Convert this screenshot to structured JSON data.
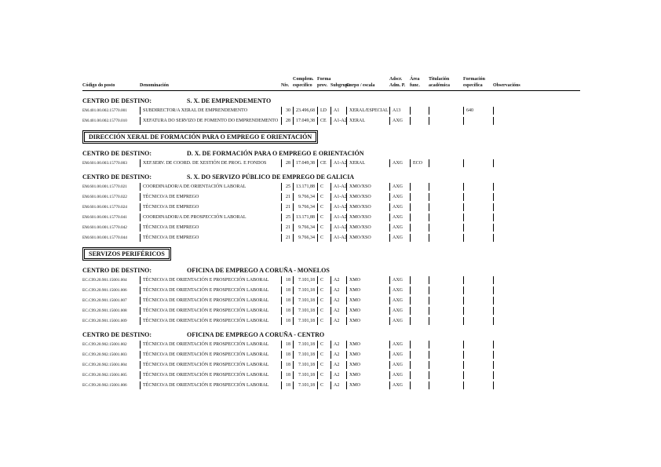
{
  "document": {
    "centro_label": "CENTRO DE DESTINO:",
    "columns": [
      {
        "line1": "",
        "line2": "Código do posto"
      },
      {
        "line1": "",
        "line2": "Denominación"
      },
      {
        "line1": "",
        "line2": "Niv."
      },
      {
        "line1": "Complem.",
        "line2": "específico"
      },
      {
        "line1": "Forma",
        "line2": "prov."
      },
      {
        "line1": "",
        "line2": "Subgrupo"
      },
      {
        "line1": "",
        "line2": "Corpo / escala"
      },
      {
        "line1": "Adscr.",
        "line2": "Adm. P."
      },
      {
        "line1": "Área",
        "line2": "func."
      },
      {
        "line1": "Titulación",
        "line2": "académica"
      },
      {
        "line1": "Formación",
        "line2": "específica"
      },
      {
        "line1": "",
        "line2": "Observacións"
      }
    ],
    "sections": [
      {
        "type": "centro",
        "title": "S. X. DE EMPRENDEMENTO",
        "rows": [
          {
            "codigo": "EM.401.00.002.15770.001",
            "denominacion": "SUBDIRECTOR/A XERAL DE EMPRENDEMENTO",
            "niv": "30",
            "complemento": "23.496,68",
            "forma": "LD",
            "subgrupo": "A1",
            "corpo": "XERAL/ESPECIAL",
            "adscr": "A13",
            "area": "",
            "titulacion": "",
            "formacion": "640",
            "observacions": ""
          },
          {
            "codigo": "EM.401.00.002.15770.010",
            "denominacion": "XEFATURA DO SERVIZO DE FOMENTO DO EMPRENDEMENTO",
            "niv": "28",
            "complemento": "17.049,38",
            "forma": "CE",
            "subgrupo": "A1-A2",
            "corpo": "XERAL",
            "adscr": "AXG",
            "area": "",
            "titulacion": "",
            "formacion": "",
            "observacions": ""
          }
        ]
      },
      {
        "type": "box",
        "title": "DIRECCIÓN XERAL DE FORMACIÓN PARA O EMPREGO E ORIENTACIÓN"
      },
      {
        "type": "centro",
        "title": "D. X. DE FORMACIÓN PARA O EMPREGO E ORIENTACIÓN",
        "rows": [
          {
            "codigo": "EM.601.00.003.15770.003",
            "denominacion": "XEF.SERV. DE COORD. DE XESTIÓN DE PROG. E FONDOS",
            "niv": "28",
            "complemento": "17.049,38",
            "forma": "CE",
            "subgrupo": "A1-A2",
            "corpo": "XERAL",
            "adscr": "AXG",
            "area": "ECO",
            "titulacion": "",
            "formacion": "",
            "observacions": ""
          }
        ]
      },
      {
        "type": "centro",
        "title": "S. X. DO SERVIZO PÚBLICO DE EMPREGO DE GALICIA",
        "rows": [
          {
            "codigo": "EM.601.00.001.15770.021",
            "denominacion": "COORDINADOR/A DE ORIENTACIÓN LABORAL",
            "niv": "25",
            "complemento": "13.171,88",
            "forma": "C",
            "subgrupo": "A1-A2",
            "corpo": "XMO/XSO",
            "adscr": "AXG",
            "area": "",
            "titulacion": "",
            "formacion": "",
            "observacions": ""
          },
          {
            "codigo": "EM.601.00.001.15770.022",
            "denominacion": "TÉCNICO/A DE EMPREGO",
            "niv": "21",
            "complemento": "9.766,34",
            "forma": "C",
            "subgrupo": "A1-A2",
            "corpo": "XMO/XSO",
            "adscr": "AXG",
            "area": "",
            "titulacion": "",
            "formacion": "",
            "observacions": ""
          },
          {
            "codigo": "EM.601.00.001.15770.024",
            "denominacion": "TÉCNICO/A DE EMPREGO",
            "niv": "21",
            "complemento": "9.766,34",
            "forma": "C",
            "subgrupo": "A1-A2",
            "corpo": "XMO/XSO",
            "adscr": "AXG",
            "area": "",
            "titulacion": "",
            "formacion": "",
            "observacions": ""
          },
          {
            "codigo": "EM.601.00.001.15770.041",
            "denominacion": "COORDINADOR/A DE PROSPECCIÓN LABORAL",
            "niv": "25",
            "complemento": "13.171,88",
            "forma": "C",
            "subgrupo": "A1-A2",
            "corpo": "XMO/XSO",
            "adscr": "AXG",
            "area": "",
            "titulacion": "",
            "formacion": "",
            "observacions": ""
          },
          {
            "codigo": "EM.601.00.001.15770.042",
            "denominacion": "TÉCNICO/A DE EMPREGO",
            "niv": "21",
            "complemento": "9.766,34",
            "forma": "C",
            "subgrupo": "A1-A2",
            "corpo": "XMO/XSO",
            "adscr": "AXG",
            "area": "",
            "titulacion": "",
            "formacion": "",
            "observacions": ""
          },
          {
            "codigo": "EM.601.00.001.15770.044",
            "denominacion": "TÉCNICO/A DE EMPREGO",
            "niv": "21",
            "complemento": "9.766,34",
            "forma": "C",
            "subgrupo": "A1-A2",
            "corpo": "XMO/XSO",
            "adscr": "AXG",
            "area": "",
            "titulacion": "",
            "formacion": "",
            "observacions": ""
          }
        ]
      },
      {
        "type": "box",
        "title": "SERVIZOS PERIFÉRICOS"
      },
      {
        "type": "centro",
        "title": "OFICINA DE EMPREGO A CORUÑA - MONELOS",
        "rows": [
          {
            "codigo": "EC.C99.20.901.15001.004",
            "denominacion": "TÉCNICO/A DE ORIENTACIÓN E PROSPECCIÓN LABORAL",
            "niv": "18",
            "complemento": "7.101,18",
            "forma": "C",
            "subgrupo": "A2",
            "corpo": "XMO",
            "adscr": "AXG",
            "area": "",
            "titulacion": "",
            "formacion": "",
            "observacions": ""
          },
          {
            "codigo": "EC.C99.20.901.15001.006",
            "denominacion": "TÉCNICO/A DE ORIENTACIÓN E PROSPECCIÓN LABORAL",
            "niv": "18",
            "complemento": "7.101,18",
            "forma": "C",
            "subgrupo": "A2",
            "corpo": "XMO",
            "adscr": "AXG",
            "area": "",
            "titulacion": "",
            "formacion": "",
            "observacions": ""
          },
          {
            "codigo": "EC.C99.20.901.15001.007",
            "denominacion": "TÉCNICO/A DE ORIENTACIÓN E PROSPECCIÓN LABORAL",
            "niv": "18",
            "complemento": "7.101,18",
            "forma": "C",
            "subgrupo": "A2",
            "corpo": "XMO",
            "adscr": "AXG",
            "area": "",
            "titulacion": "",
            "formacion": "",
            "observacions": ""
          },
          {
            "codigo": "EC.C99.20.901.15001.008",
            "denominacion": "TÉCNICO/A DE ORIENTACIÓN E PROSPECCIÓN LABORAL",
            "niv": "18",
            "complemento": "7.101,18",
            "forma": "C",
            "subgrupo": "A2",
            "corpo": "XMO",
            "adscr": "AXG",
            "area": "",
            "titulacion": "",
            "formacion": "",
            "observacions": ""
          },
          {
            "codigo": "EC.C99.20.901.15001.009",
            "denominacion": "TÉCNICO/A DE ORIENTACIÓN E PROSPECCIÓN LABORAL",
            "niv": "18",
            "complemento": "7.101,18",
            "forma": "C",
            "subgrupo": "A2",
            "corpo": "XMO",
            "adscr": "AXG",
            "area": "",
            "titulacion": "",
            "formacion": "",
            "observacions": ""
          }
        ]
      },
      {
        "type": "centro",
        "title": "OFICINA DE EMPREGO A CORUÑA - CENTRO",
        "rows": [
          {
            "codigo": "EC.C99.20.902.15001.002",
            "denominacion": "TÉCNICO/A DE ORIENTACIÓN E PROSPECCIÓN LABORAL",
            "niv": "18",
            "complemento": "7.101,18",
            "forma": "C",
            "subgrupo": "A2",
            "corpo": "XMO",
            "adscr": "AXG",
            "area": "",
            "titulacion": "",
            "formacion": "",
            "observacions": ""
          },
          {
            "codigo": "EC.C99.20.902.15001.003",
            "denominacion": "TÉCNICO/A DE ORIENTACIÓN E PROSPECCIÓN LABORAL",
            "niv": "18",
            "complemento": "7.101,18",
            "forma": "C",
            "subgrupo": "A2",
            "corpo": "XMO",
            "adscr": "AXG",
            "area": "",
            "titulacion": "",
            "formacion": "",
            "observacions": ""
          },
          {
            "codigo": "EC.C99.20.902.15001.004",
            "denominacion": "TÉCNICO/A DE ORIENTACIÓN E PROSPECCIÓN LABORAL",
            "niv": "18",
            "complemento": "7.101,18",
            "forma": "C",
            "subgrupo": "A2",
            "corpo": "XMO",
            "adscr": "AXG",
            "area": "",
            "titulacion": "",
            "formacion": "",
            "observacions": ""
          },
          {
            "codigo": "EC.C99.20.902.15001.005",
            "denominacion": "TÉCNICO/A DE ORIENTACIÓN E PROSPECCIÓN LABORAL",
            "niv": "18",
            "complemento": "7.101,18",
            "forma": "C",
            "subgrupo": "A2",
            "corpo": "XMO",
            "adscr": "AXG",
            "area": "",
            "titulacion": "",
            "formacion": "",
            "observacions": ""
          },
          {
            "codigo": "EC.C99.20.902.15001.006",
            "denominacion": "TÉCNICO/A DE ORIENTACIÓN E PROSPECCIÓN LABORAL",
            "niv": "18",
            "complemento": "7.101,18",
            "forma": "C",
            "subgrupo": "A2",
            "corpo": "XMO",
            "adscr": "AXG",
            "area": "",
            "titulacion": "",
            "formacion": "",
            "observacions": ""
          }
        ]
      }
    ]
  }
}
